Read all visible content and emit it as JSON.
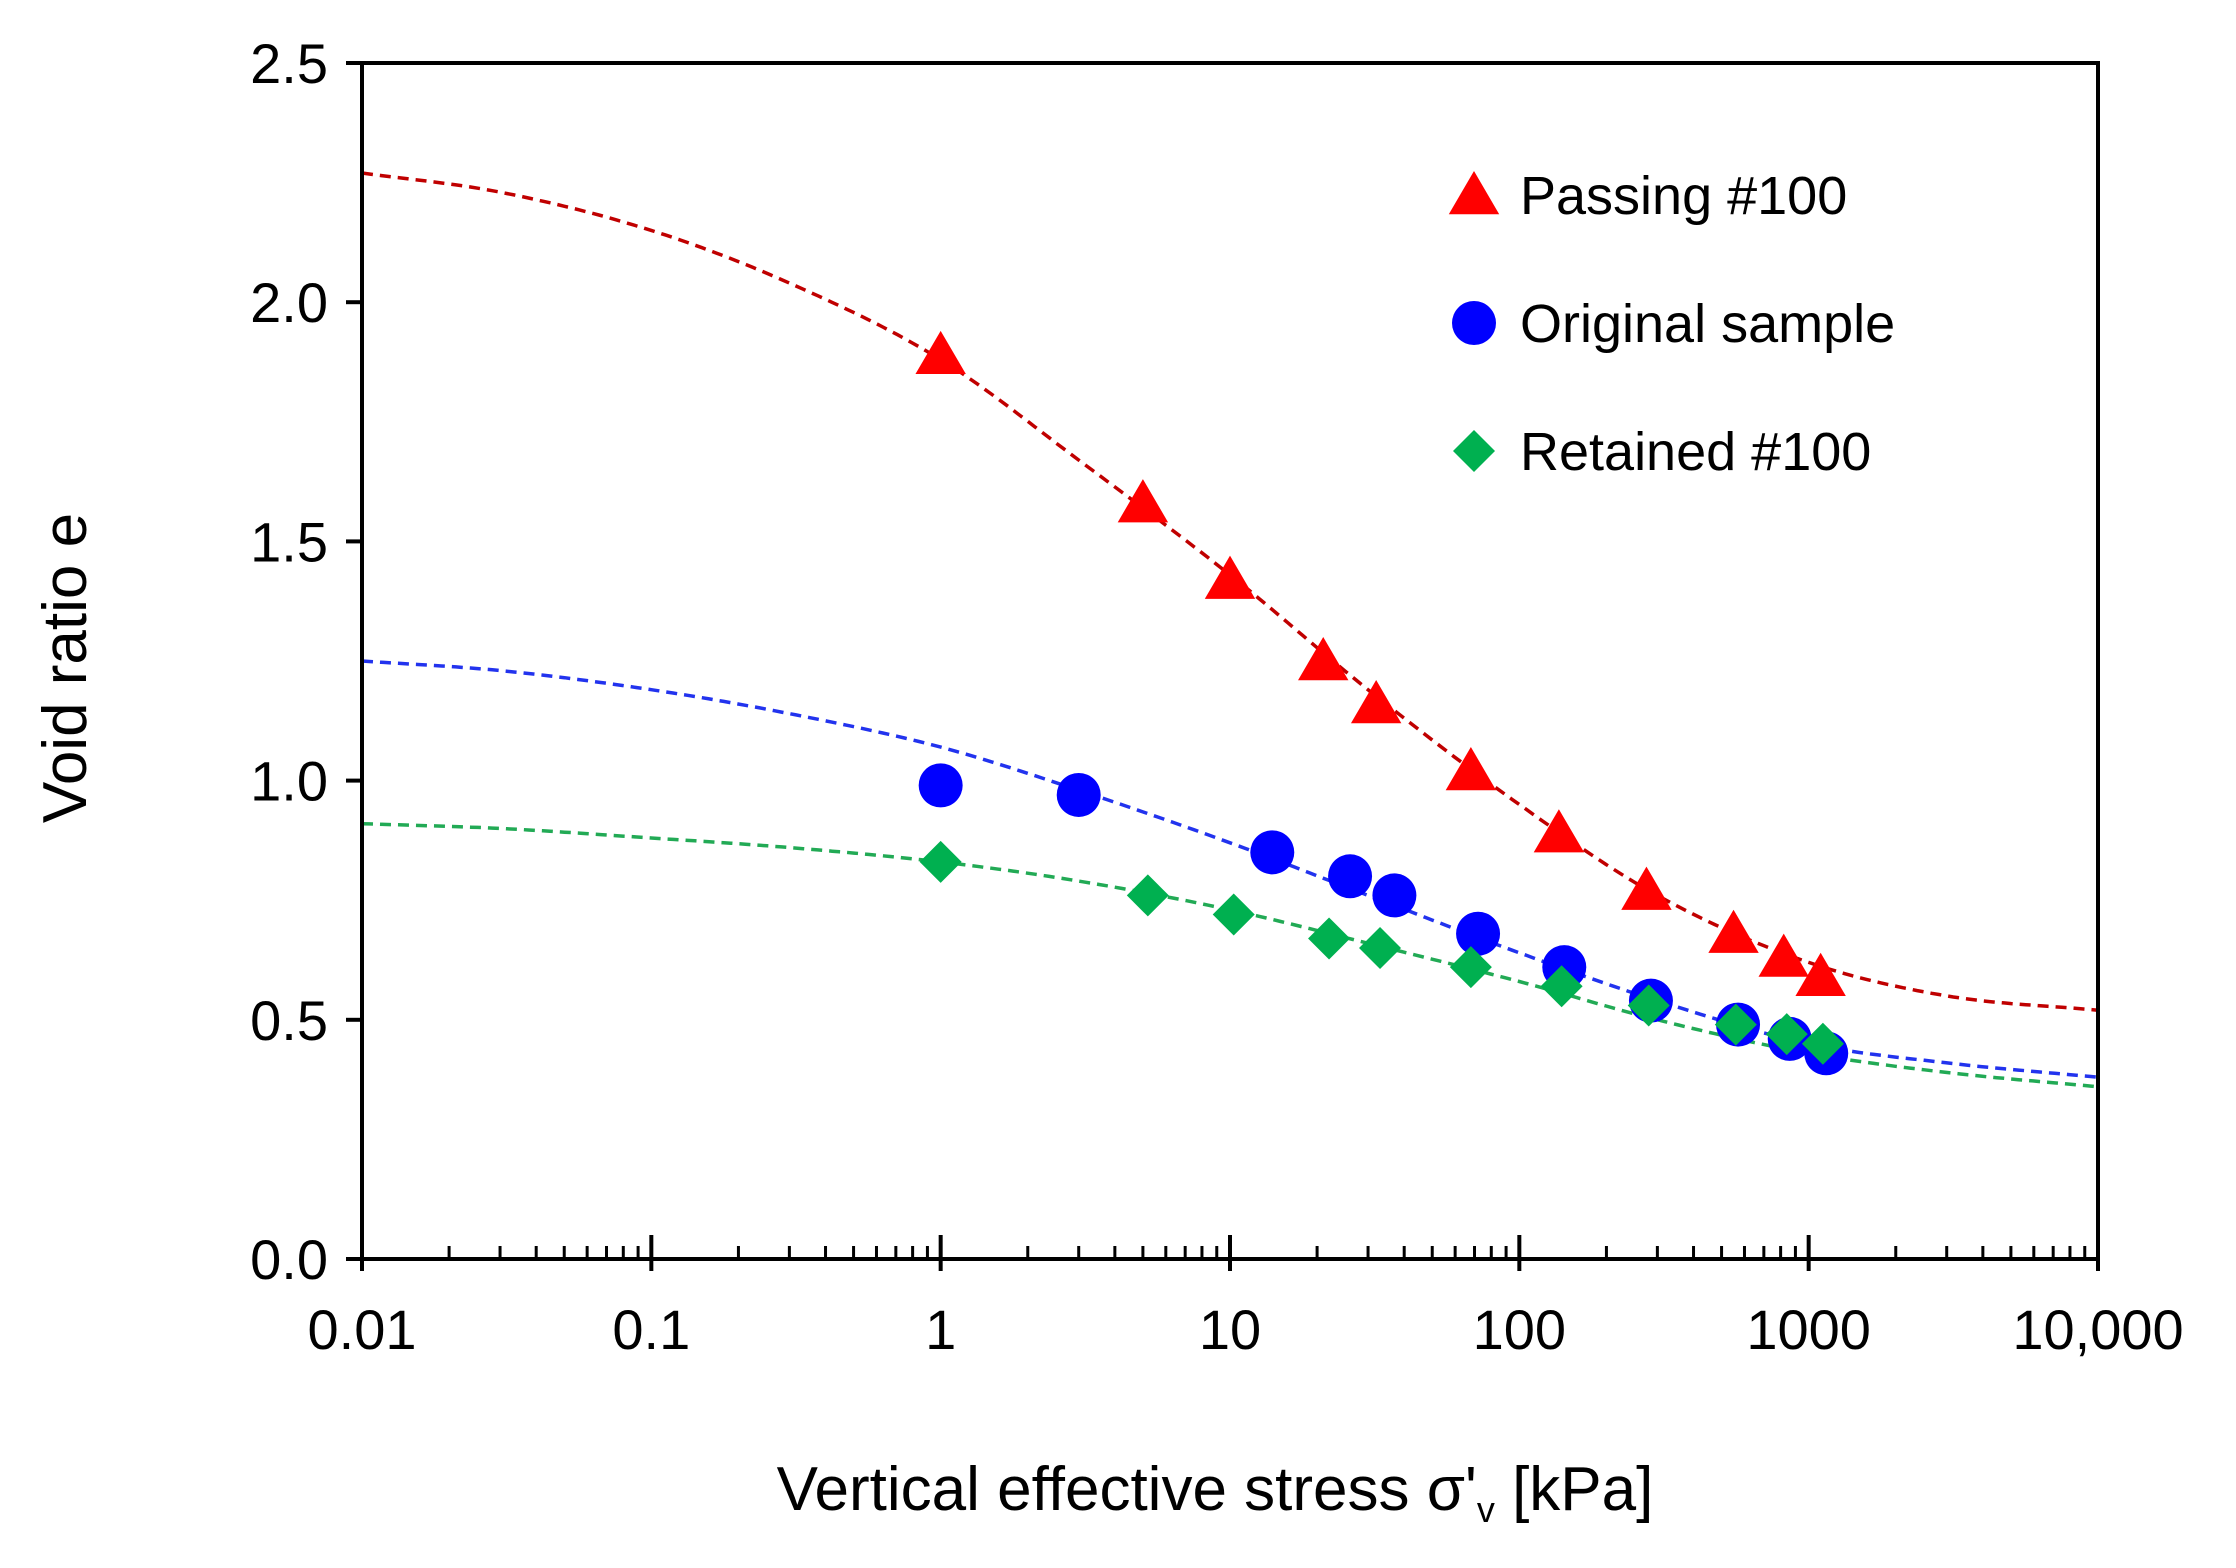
{
  "chart_data": {
    "type": "scatter",
    "title": "",
    "xlabel": "Vertical effective stress σ'",
    "xlabel_subscript": "v",
    "xlabel_unit": " [kPa]",
    "ylabel": "Void ratio e",
    "xscale": "log",
    "xlim": [
      0.01,
      10000
    ],
    "ylim": [
      0.0,
      2.5
    ],
    "x_ticks": [
      0.01,
      0.1,
      1,
      10,
      100,
      1000,
      10000
    ],
    "x_tick_labels": [
      "0.01",
      "0.1",
      "1",
      "10",
      "100",
      "1000",
      "10,000"
    ],
    "y_ticks": [
      0.0,
      0.5,
      1.0,
      1.5,
      2.0,
      2.5
    ],
    "y_tick_labels": [
      "0.0",
      "0.5",
      "1.0",
      "1.5",
      "2.0",
      "2.5"
    ],
    "grid": false,
    "legend_position": "top-right",
    "series": [
      {
        "name": "Passing #100",
        "marker": "triangle",
        "color": "#ff0000",
        "fit_color": "#c00000",
        "x": [
          1,
          5,
          10,
          21,
          32,
          68,
          137,
          275,
          550,
          820,
          1100
        ],
        "y": [
          1.89,
          1.58,
          1.42,
          1.25,
          1.16,
          1.02,
          0.89,
          0.77,
          0.68,
          0.63,
          0.59
        ],
        "fit": {
          "x": [
            0.01,
            0.03,
            0.1,
            0.3,
            1,
            3,
            10,
            30,
            100,
            300,
            1000,
            3000,
            10000
          ],
          "y": [
            2.27,
            2.23,
            2.15,
            2.04,
            1.88,
            1.67,
            1.43,
            1.19,
            0.95,
            0.76,
            0.62,
            0.55,
            0.52
          ]
        }
      },
      {
        "name": "Original sample",
        "marker": "circle",
        "color": "#0000ff",
        "fit_color": "#2233ee",
        "x": [
          1,
          3,
          14,
          26,
          37,
          72,
          143,
          285,
          570,
          860,
          1150
        ],
        "y": [
          0.99,
          0.97,
          0.85,
          0.8,
          0.76,
          0.68,
          0.61,
          0.54,
          0.49,
          0.46,
          0.43
        ],
        "fit": {
          "x": [
            0.01,
            0.03,
            0.1,
            0.3,
            1,
            3,
            10,
            30,
            100,
            300,
            1000,
            3000,
            10000
          ],
          "y": [
            1.25,
            1.23,
            1.19,
            1.14,
            1.07,
            0.98,
            0.87,
            0.76,
            0.64,
            0.54,
            0.45,
            0.41,
            0.38
          ]
        }
      },
      {
        "name": "Retained #100",
        "marker": "diamond",
        "color": "#00b050",
        "fit_color": "#22aa55",
        "x": [
          1,
          5.2,
          10.3,
          22,
          33,
          68,
          140,
          280,
          560,
          840,
          1120
        ],
        "y": [
          0.83,
          0.76,
          0.72,
          0.67,
          0.65,
          0.61,
          0.57,
          0.53,
          0.49,
          0.47,
          0.45
        ],
        "fit": {
          "x": [
            0.01,
            0.03,
            0.1,
            0.3,
            1,
            3,
            10,
            30,
            100,
            300,
            1000,
            3000,
            10000
          ],
          "y": [
            0.91,
            0.9,
            0.88,
            0.86,
            0.83,
            0.79,
            0.73,
            0.66,
            0.58,
            0.5,
            0.43,
            0.39,
            0.36
          ]
        }
      }
    ]
  }
}
